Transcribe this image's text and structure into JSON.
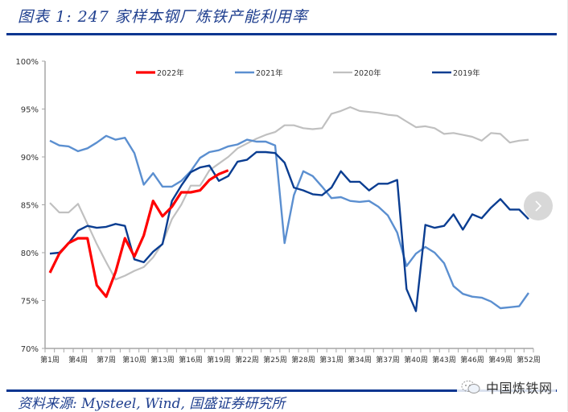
{
  "header": {
    "title": "图表 1: 247 家样本钢厂炼铁产能利用率"
  },
  "footer": {
    "source": "资料来源: Mysteel, Wind, 国盛证券研究所",
    "watermark": "中国炼铁网"
  },
  "controls": {
    "next_icon": "chevron-right-icon"
  },
  "colors": {
    "title": "#1f3f8f",
    "rule": "#0a3590",
    "s2022": "#ff0000",
    "s2021": "#5b8fd0",
    "s2020": "#c0c0c0",
    "s2019": "#0a3d91",
    "axis": "#a6a6a6"
  },
  "chart_data": {
    "type": "line",
    "title": "247 家样本钢厂炼铁产能利用率",
    "xlabel": "",
    "ylabel": "",
    "ylim": [
      70,
      100
    ],
    "yticks": [
      "70%",
      "75%",
      "80%",
      "85%",
      "90%",
      "95%",
      "100%"
    ],
    "xtick_labels": [
      "第1周",
      "第4周",
      "第7周",
      "第10周",
      "第13周",
      "第16周",
      "第19周",
      "第22周",
      "第25周",
      "第28周",
      "第31周",
      "第34周",
      "第37周",
      "第40周",
      "第43周",
      "第46周",
      "第49周",
      "第52周"
    ],
    "grid": false,
    "legend_position": "top",
    "x": [
      1,
      2,
      3,
      4,
      5,
      6,
      7,
      8,
      9,
      10,
      11,
      12,
      13,
      14,
      15,
      16,
      17,
      18,
      19,
      20,
      21,
      22,
      23,
      24,
      25,
      26,
      27,
      28,
      29,
      30,
      31,
      32,
      33,
      34,
      35,
      36,
      37,
      38,
      39,
      40,
      41,
      42,
      43,
      44,
      45,
      46,
      47,
      48,
      49,
      50,
      51,
      52
    ],
    "series": [
      {
        "name": "2022年",
        "color": "#ff0000",
        "values": [
          77.9,
          79.9,
          81.0,
          81.5,
          81.5,
          76.6,
          75.4,
          78.0,
          81.5,
          79.6,
          81.8,
          85.4,
          83.8,
          84.8,
          86.3,
          86.3,
          86.5,
          87.6,
          88.2,
          88.6
        ]
      },
      {
        "name": "2021年",
        "color": "#5b8fd0",
        "values": [
          91.7,
          91.2,
          91.1,
          90.6,
          90.9,
          91.5,
          92.2,
          91.8,
          92.0,
          90.4,
          87.1,
          88.3,
          86.9,
          86.9,
          87.5,
          88.5,
          89.9,
          90.5,
          90.7,
          91.1,
          91.3,
          91.8,
          91.6,
          91.6,
          91.2,
          81.0,
          86.0,
          88.5,
          88.0,
          86.9,
          85.7,
          85.8,
          85.4,
          85.3,
          85.4,
          84.8,
          83.9,
          82.1,
          78.6,
          79.9,
          80.6,
          80.0,
          78.9,
          76.5,
          75.7,
          75.4,
          75.3,
          74.9,
          74.2,
          74.3,
          74.4,
          75.8
        ]
      },
      {
        "name": "2020年",
        "color": "#c0c0c0",
        "values": [
          85.2,
          84.2,
          84.2,
          85.1,
          83.0,
          80.9,
          79.0,
          77.2,
          77.6,
          78.1,
          78.5,
          79.5,
          81.0,
          83.5,
          85.0,
          87.0,
          87.0,
          88.6,
          89.3,
          90.0,
          90.9,
          91.4,
          91.9,
          92.3,
          92.6,
          93.3,
          93.3,
          93.0,
          92.9,
          93.0,
          94.5,
          94.8,
          95.2,
          94.8,
          94.7,
          94.6,
          94.4,
          94.3,
          93.7,
          93.1,
          93.2,
          93.0,
          92.4,
          92.5,
          92.3,
          92.1,
          91.7,
          92.5,
          92.4,
          91.5,
          91.7,
          91.8
        ]
      },
      {
        "name": "2019年",
        "color": "#0a3d91",
        "values": [
          79.9,
          80.0,
          81.0,
          82.3,
          82.8,
          82.6,
          82.7,
          83.0,
          82.8,
          79.3,
          79.0,
          80.1,
          80.9,
          85.4,
          87.0,
          88.4,
          88.9,
          89.1,
          87.5,
          88.0,
          89.5,
          89.7,
          90.5,
          90.5,
          90.4,
          89.4,
          86.8,
          86.5,
          86.1,
          86.0,
          86.8,
          88.5,
          87.4,
          87.4,
          86.5,
          87.2,
          87.2,
          87.6,
          76.2,
          73.9,
          82.9,
          82.6,
          82.8,
          84.0,
          82.4,
          84.0,
          83.6,
          84.7,
          85.6,
          84.5,
          84.5,
          83.5
        ]
      }
    ]
  }
}
